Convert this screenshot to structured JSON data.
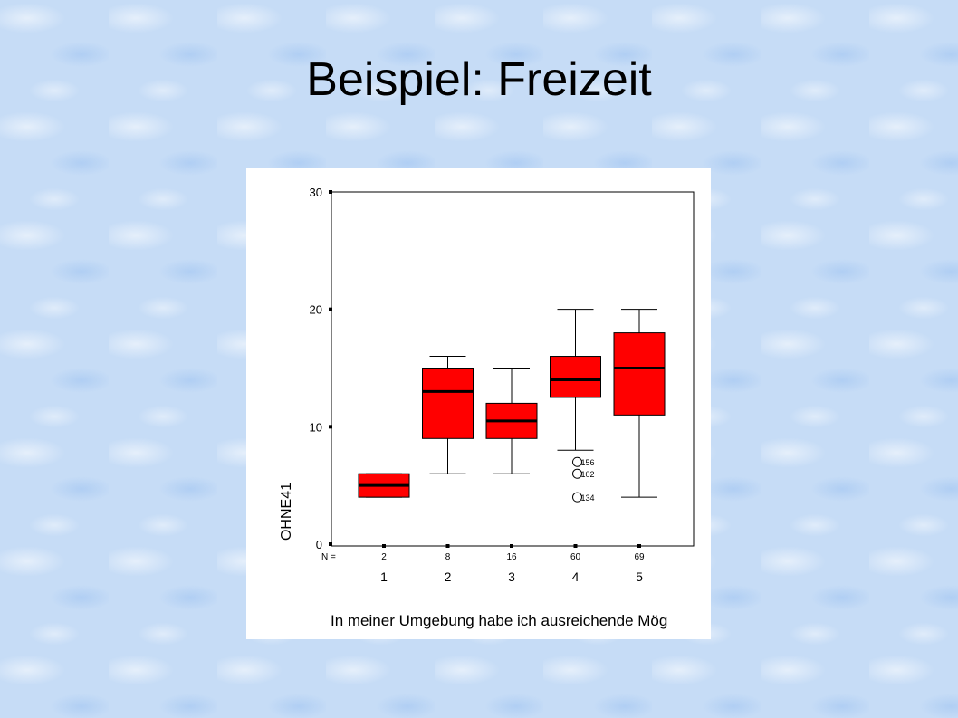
{
  "slide": {
    "title": "Beispiel: Freizeit"
  },
  "chart_data": {
    "type": "box",
    "ylabel": "OHNE41",
    "xlabel": "In meiner Umgebung habe ich ausreichende Mög",
    "ylim": [
      0,
      30
    ],
    "yticks": [
      0,
      10,
      20,
      30
    ],
    "n_label": "N =",
    "box_color": "#ff0000",
    "categories": [
      "1",
      "2",
      "3",
      "4",
      "5"
    ],
    "boxes": [
      {
        "category": "1",
        "n": "2",
        "whisker_low": 4,
        "q1": 4,
        "median": 5,
        "q3": 6,
        "whisker_high": 6,
        "outliers": []
      },
      {
        "category": "2",
        "n": "8",
        "whisker_low": 6,
        "q1": 9,
        "median": 13,
        "q3": 15,
        "whisker_high": 16,
        "outliers": []
      },
      {
        "category": "3",
        "n": "16",
        "whisker_low": 6,
        "q1": 9,
        "median": 10.5,
        "q3": 12,
        "whisker_high": 15,
        "outliers": []
      },
      {
        "category": "4",
        "n": "60",
        "whisker_low": 8,
        "q1": 12.5,
        "median": 14,
        "q3": 16,
        "whisker_high": 20,
        "outliers": [
          {
            "value": 7,
            "label": "156"
          },
          {
            "value": 6,
            "label": "102"
          },
          {
            "value": 4,
            "label": "134"
          }
        ]
      },
      {
        "category": "5",
        "n": "69",
        "whisker_low": 4,
        "q1": 11,
        "median": 15,
        "q3": 18,
        "whisker_high": 20,
        "outliers": []
      }
    ]
  }
}
